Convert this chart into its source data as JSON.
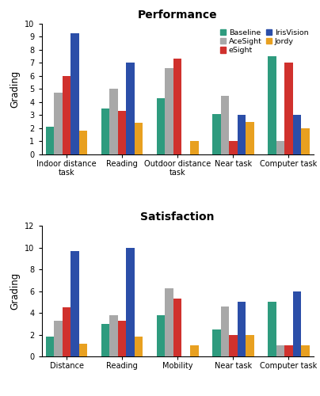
{
  "performance": {
    "title": "Performance",
    "categories": [
      "Indoor distance\ntask",
      "Reading",
      "Outdoor distance\ntask",
      "Near task",
      "Computer task"
    ],
    "ylim": [
      0,
      10
    ],
    "yticks": [
      0,
      1,
      2,
      3,
      4,
      5,
      6,
      7,
      8,
      9,
      10
    ],
    "series": {
      "Baseline": [
        2.1,
        3.5,
        4.3,
        3.1,
        7.5
      ],
      "AceSight": [
        4.7,
        5.0,
        6.6,
        4.5,
        1.0
      ],
      "eSight": [
        6.0,
        3.3,
        7.3,
        1.0,
        7.0
      ],
      "IrisVision": [
        9.3,
        7.0,
        0.0,
        3.0,
        3.0
      ],
      "Jordy": [
        1.8,
        2.4,
        1.0,
        2.5,
        2.0
      ]
    }
  },
  "satisfaction": {
    "title": "Satisfaction",
    "categories": [
      "Distance",
      "Reading",
      "Mobility",
      "Near task",
      "Computer task"
    ],
    "ylim": [
      0,
      12
    ],
    "yticks": [
      0,
      2,
      4,
      6,
      8,
      10,
      12
    ],
    "series": {
      "Baseline": [
        1.8,
        3.0,
        3.8,
        2.5,
        5.0
      ],
      "AceSight": [
        3.3,
        3.8,
        6.3,
        4.6,
        1.0
      ],
      "eSight": [
        4.5,
        3.3,
        5.3,
        2.0,
        1.0
      ],
      "IrisVision": [
        9.7,
        10.0,
        0.0,
        5.0,
        6.0
      ],
      "Jordy": [
        1.2,
        1.8,
        1.0,
        2.0,
        1.0
      ]
    }
  },
  "colors": {
    "Baseline": "#2e9b7e",
    "AceSight": "#a8a8a8",
    "eSight": "#d0312d",
    "IrisVision": "#2b4ea8",
    "Jordy": "#e8a020"
  },
  "ylabel": "Grading",
  "legend_order": [
    "Baseline",
    "AceSight",
    "eSight",
    "IrisVision",
    "Jordy"
  ],
  "legend_ncol": 2
}
